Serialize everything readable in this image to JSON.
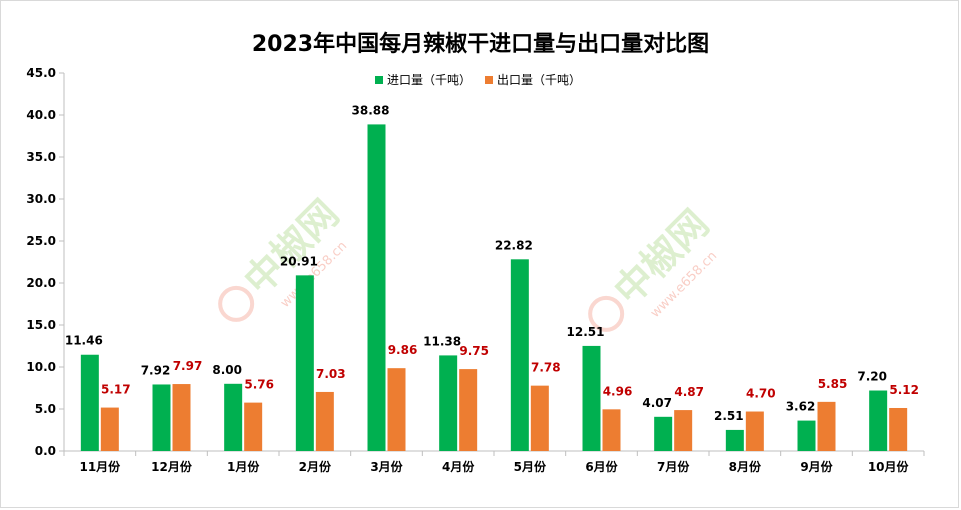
{
  "chart_data": {
    "type": "bar",
    "title": "2023年中国每月辣椒干进口量与出口量对比图",
    "categories": [
      "11月份",
      "12月份",
      "1月份",
      "2月份",
      "3月份",
      "4月份",
      "5月份",
      "6月份",
      "7月份",
      "8月份",
      "9月份",
      "10月份"
    ],
    "series": [
      {
        "name": "进口量（千吨）",
        "color": "#00b050",
        "label_color": "#000000",
        "values": [
          11.46,
          7.92,
          8.0,
          20.91,
          38.88,
          11.38,
          22.82,
          12.51,
          4.07,
          2.51,
          3.62,
          7.2
        ]
      },
      {
        "name": "出口量（千吨）",
        "color": "#ed7d31",
        "label_color": "#c00000",
        "values": [
          5.17,
          7.97,
          5.76,
          7.03,
          9.86,
          9.75,
          7.78,
          4.96,
          4.87,
          4.7,
          5.85,
          5.12
        ]
      }
    ],
    "ylim": [
      0,
      45
    ],
    "yticks": [
      "0.0",
      "5.0",
      "10.0",
      "15.0",
      "20.0",
      "25.0",
      "30.0",
      "35.0",
      "40.0",
      "45.0"
    ],
    "legend_position": "top-center",
    "grid": false
  },
  "watermark": {
    "text": "中椒网",
    "url": "www.e658.cn",
    "color": "#7ac143",
    "accent_color": "#e84a2c"
  }
}
